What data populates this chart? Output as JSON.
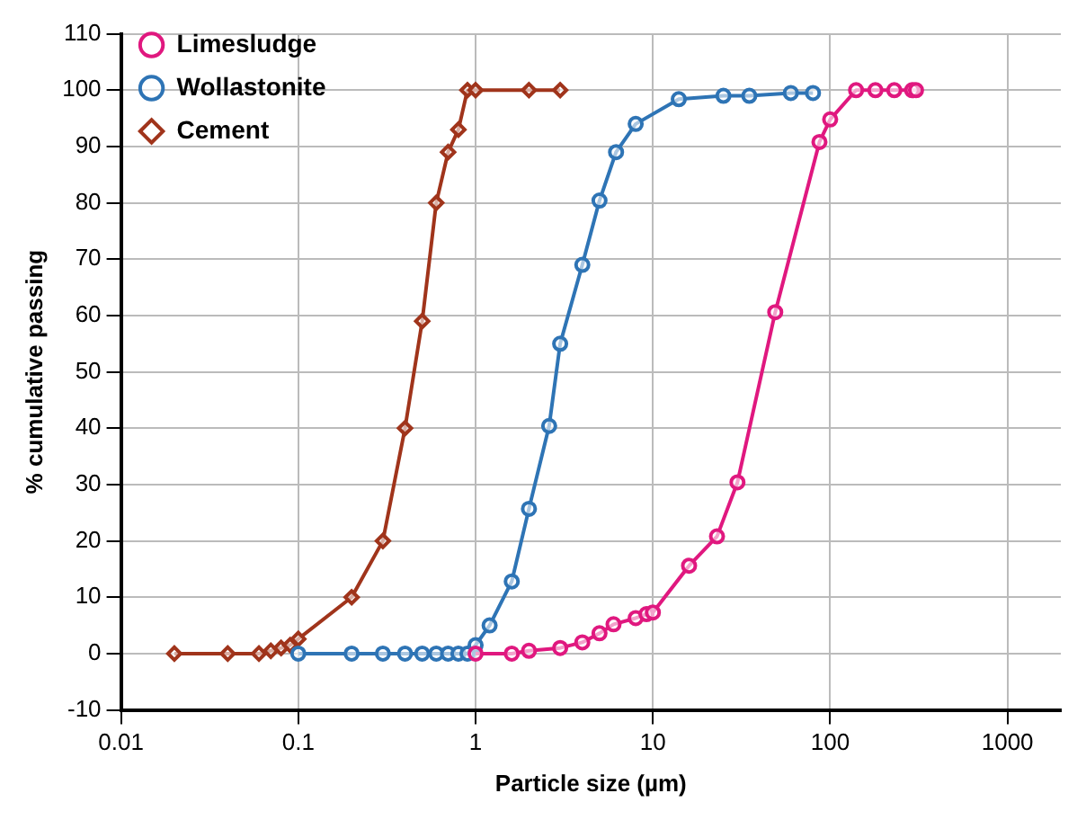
{
  "chart_data": {
    "type": "line",
    "xlabel": "Particle size (µm)",
    "ylabel": "% cumulative passing",
    "log": "x",
    "grid": true,
    "legend": "top left",
    "xlim": [
      0.01,
      2000
    ],
    "xticks": [
      0.01,
      0.1,
      1,
      10,
      100,
      1000
    ],
    "ylim": [
      -10,
      110
    ],
    "yticks": [
      -10,
      0,
      10,
      20,
      30,
      40,
      50,
      60,
      70,
      80,
      90,
      100,
      110
    ],
    "series": [
      {
        "name": "Limesludge",
        "color": "#e0187f",
        "marker": "circle",
        "x": [
          1,
          1.6,
          2,
          3,
          4,
          5,
          6,
          8,
          9.2,
          10,
          16,
          23,
          30,
          49,
          87,
          100,
          140,
          180,
          230,
          290,
          305
        ],
        "values": [
          0,
          0,
          0.5,
          1,
          2,
          3.6,
          5.2,
          6.3,
          7,
          7.3,
          15.6,
          20.8,
          30.4,
          60.6,
          90.8,
          94.8,
          100,
          100,
          100,
          100,
          100
        ]
      },
      {
        "name": "Wollastonite",
        "color": "#2e74b5",
        "marker": "circle",
        "x": [
          0.1,
          0.2,
          0.3,
          0.4,
          0.5,
          0.6,
          0.7,
          0.8,
          0.9,
          1,
          1.2,
          1.6,
          2,
          2.6,
          3,
          4,
          5,
          6.2,
          8,
          14,
          25,
          35,
          60,
          80
        ],
        "values": [
          0,
          0,
          0,
          0,
          0,
          0,
          0,
          0,
          0,
          1.5,
          5,
          12.8,
          25.7,
          40.4,
          55,
          69,
          80.4,
          89,
          94,
          98.4,
          99,
          99,
          99.5,
          99.5
        ]
      },
      {
        "name": "Cement",
        "color": "#a0341b",
        "marker": "diamond",
        "x": [
          0.02,
          0.04,
          0.06,
          0.07,
          0.08,
          0.09,
          0.1,
          0.2,
          0.3,
          0.4,
          0.5,
          0.6,
          0.7,
          0.8,
          0.9,
          1,
          2,
          3
        ],
        "values": [
          0,
          0,
          0,
          0.5,
          1,
          1.5,
          2.6,
          10,
          20,
          40,
          59,
          80,
          89,
          93,
          100,
          100,
          100,
          100
        ]
      }
    ]
  }
}
